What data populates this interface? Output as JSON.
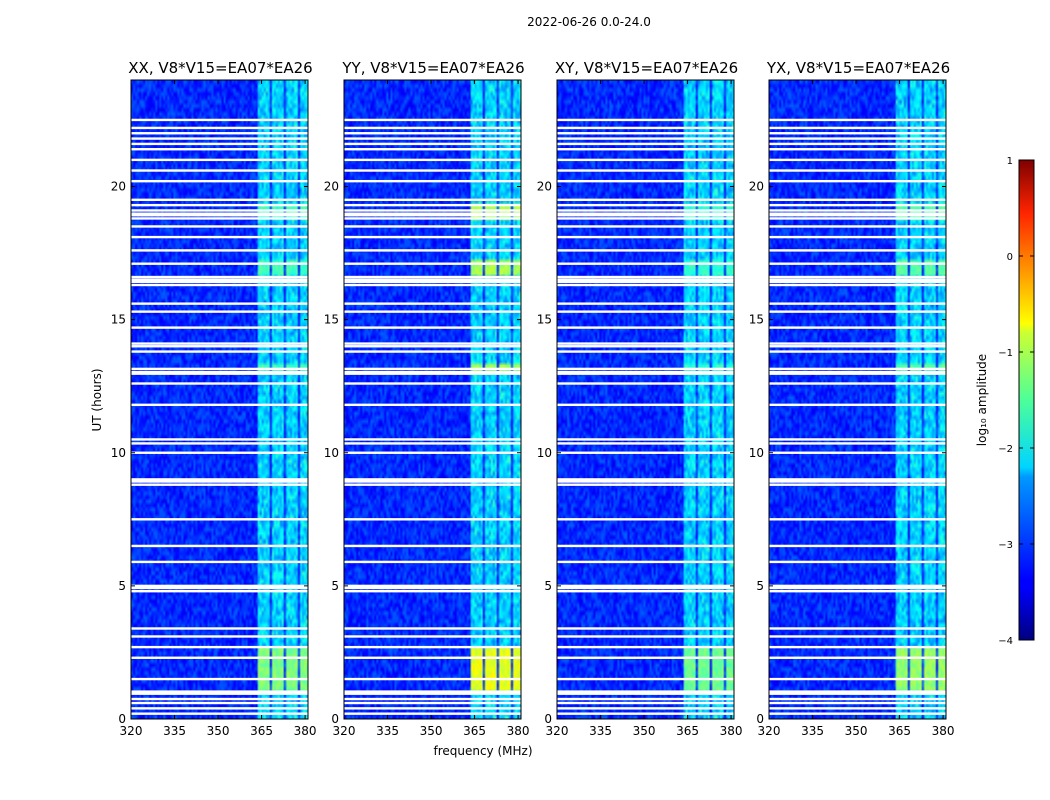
{
  "chart_data": {
    "type": "heatmap",
    "suptitle": "2022-06-26 0.0-24.0",
    "xlabel": "frequency (MHz)",
    "ylabel": "UT (hours)",
    "xlim": [
      320,
      381
    ],
    "ylim": [
      0,
      24
    ],
    "x_ticks": [
      320,
      335,
      350,
      365,
      380
    ],
    "y_ticks": [
      0,
      5,
      10,
      15,
      20
    ],
    "panels": [
      {
        "title": "XX, V8*V15=EA07*EA26",
        "pol": "XX",
        "rfi_level": -1.7
      },
      {
        "title": "YY, V8*V15=EA07*EA26",
        "pol": "YY",
        "rfi_level": -1.2
      },
      {
        "title": "XY, V8*V15=EA07*EA26",
        "pol": "XY",
        "rfi_level": -1.8
      },
      {
        "title": "YX, V8*V15=EA07*EA26",
        "pol": "YX",
        "rfi_level": -1.6
      }
    ],
    "rfi_channels_mhz": [
      [
        363.5,
        367.5
      ],
      [
        368.5,
        372.5
      ],
      [
        373.5,
        377.5
      ],
      [
        378.5,
        381
      ]
    ],
    "rfi_epochs_hours": [
      [
        1.1,
        2.7
      ],
      [
        16.6,
        17.2
      ],
      [
        18.8,
        19.3
      ],
      [
        13.0,
        13.3
      ]
    ],
    "flagged_hours": [
      0.2,
      0.4,
      0.6,
      0.75,
      0.95,
      1.5,
      2.3,
      2.7,
      3.1,
      3.4,
      4.8,
      5.0,
      5.9,
      6.5,
      7.5,
      8.8,
      9.0,
      10.0,
      10.35,
      10.5,
      11.8,
      12.6,
      13.0,
      13.15,
      13.8,
      14.0,
      14.1,
      14.7,
      15.3,
      15.6,
      16.3,
      16.5,
      16.6,
      17.1,
      17.6,
      18.1,
      18.5,
      18.8,
      19.1,
      19.3,
      19.5,
      20.2,
      20.6,
      21.0,
      21.4,
      21.6,
      21.8,
      22.0,
      22.2,
      22.5
    ],
    "colorbar": {
      "label": "log₁₀ amplitude",
      "range": [
        -4,
        1
      ],
      "ticks": [
        1,
        0,
        -1,
        -2,
        -3,
        -4
      ],
      "colormap": "jet"
    }
  }
}
